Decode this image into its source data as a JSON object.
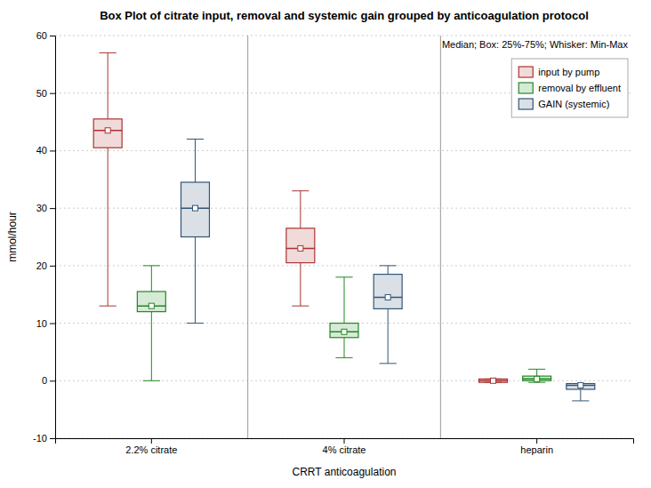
{
  "chart_data": {
    "type": "box",
    "title": "Box Plot of citrate input, removal and systemic gain grouped by anticoagulation protocol",
    "xlabel": "CRRT anticoagulation",
    "ylabel": "mmol/hour",
    "annotation": "Median; Box: 25%-75%; Whisker: Min-Max",
    "categories": [
      "2.2% citrate",
      "4% citrate",
      "heparin"
    ],
    "series": [
      {
        "name": "input by pump",
        "color": "#aa3333",
        "q1": [
          40.5,
          20.5,
          -0.3
        ],
        "q3": [
          45.5,
          26.5,
          0.3
        ],
        "median": [
          43.5,
          23.0,
          0.0
        ],
        "min": [
          13,
          13,
          -0.3
        ],
        "max": [
          57,
          33,
          0.3
        ]
      },
      {
        "name": "removal by effluent",
        "color": "#228822",
        "q1": [
          12.0,
          7.5,
          0.0
        ],
        "q3": [
          15.5,
          10.0,
          0.8
        ],
        "median": [
          13.0,
          8.5,
          0.3
        ],
        "min": [
          0,
          4,
          -0.3
        ],
        "max": [
          20,
          18,
          2.0
        ]
      },
      {
        "name": "GAIN (systemic)",
        "color": "#335577",
        "q1": [
          25.0,
          12.5,
          -1.5
        ],
        "q3": [
          34.5,
          18.5,
          -0.5
        ],
        "median": [
          30.0,
          14.5,
          -0.8
        ],
        "min": [
          10,
          3,
          -3.5
        ],
        "max": [
          42,
          20,
          -0.5
        ]
      }
    ],
    "ylim": [
      -10,
      60
    ],
    "yticks": [
      -10,
      0,
      10,
      20,
      30,
      40,
      50,
      60
    ],
    "grid": true,
    "legend": "upper right"
  }
}
